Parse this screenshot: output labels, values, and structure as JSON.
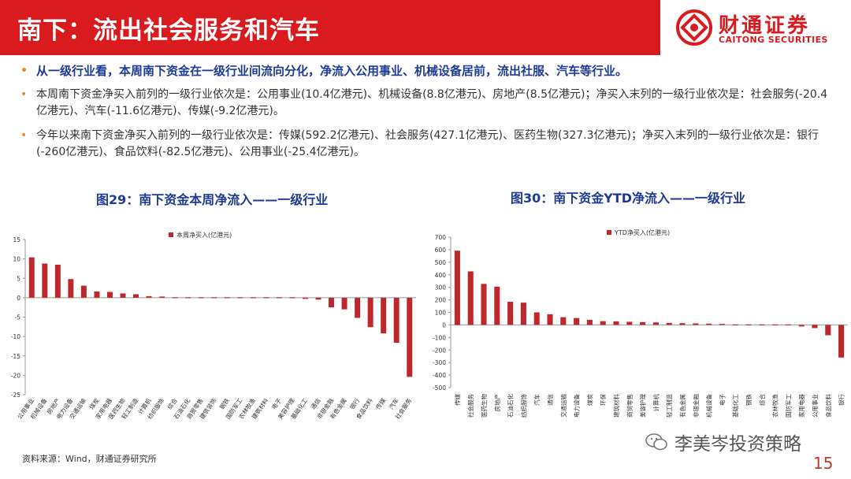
{
  "header": {
    "title": "南下：流出社会服务和汽车",
    "brand_cn": "财通证券",
    "brand_en": "CAITONG SECURITIES",
    "accent_color": "#d91a1f"
  },
  "bullets": [
    "从一级行业看，本周南下资金在一级行业间流向分化，净流入公用事业、机械设备居前，流出社服、汽车等行业。",
    "本周南下资金净买入前列的一级行业依次是：公用事业(10.4亿港元)、机械设备(8.8亿港元)、房地产(8.5亿港元)；净买入末列的一级行业依次是：社会服务(-20.4亿港元)、汽车(-11.6亿港元)、传媒(-9.2亿港元)。",
    "今年以来南下资金净买入前列的一级行业依次是：传媒(592.2亿港元)、社会服务(427.1亿港元)、医药生物(327.3亿港元)；净买入末列的一级行业依次是：银行(-260亿港元)、食品饮料(-82.5亿港元)、公用事业(-25.4亿港元)。"
  ],
  "footer": {
    "source": "资料来源：Wind，财通证券研究所",
    "watermark": "李美岑投资策略",
    "page": "15"
  },
  "chart_data": [
    {
      "type": "bar",
      "title": "图29：南下资金本周净流入——一级行业",
      "categories": [
        "公用事业",
        "机械设备",
        "房地产",
        "电力设备",
        "交通运输",
        "煤炭",
        "家用电器",
        "医药生物",
        "轻工制造",
        "计算机",
        "纺织服饰",
        "综合",
        "石油石化",
        "商贸零售",
        "建筑装饰",
        "钢铁",
        "国防军工",
        "农林牧渔",
        "建筑材料",
        "电子",
        "美容护理",
        "基础化工",
        "通信",
        "非银金融",
        "有色金属",
        "银行",
        "食品饮料",
        "传媒",
        "汽车",
        "社会服务"
      ],
      "series": [
        {
          "name": "本周净买入(亿港元)",
          "values": [
            10.4,
            8.8,
            8.5,
            4.8,
            3.1,
            1.6,
            1.5,
            1.1,
            0.9,
            0.4,
            0.3,
            0.2,
            0.2,
            0.2,
            0.1,
            0.0,
            0.0,
            0.0,
            0.0,
            0.0,
            -0.2,
            -0.3,
            -0.5,
            -2.5,
            -3.0,
            -5.2,
            -7.6,
            -9.2,
            -11.6,
            -20.4
          ]
        }
      ],
      "ylim": [
        -25,
        15
      ],
      "yticks": [
        -25,
        -20,
        -15,
        -10,
        -5,
        0,
        5,
        10,
        15
      ],
      "legend": "top-center",
      "grid": false,
      "bar_color": "#c0272d"
    },
    {
      "type": "bar",
      "title": "图30：南下资金YTD净流入——一级行业",
      "categories": [
        "传媒",
        "社会服务",
        "医药生物",
        "房地产",
        "石油石化",
        "纺织服饰",
        "汽车",
        "通信",
        "交通运输",
        "电力设备",
        "煤炭",
        "环保",
        "建筑材料",
        "商贸零售",
        "美容护理",
        "计算机",
        "轻工制造",
        "有色金属",
        "非银金融",
        "机械设备",
        "电子",
        "基础化工",
        "钢铁",
        "综合",
        "农林牧渔",
        "国防军工",
        "家用电器",
        "公用事业",
        "食品饮料",
        "银行"
      ],
      "series": [
        {
          "name": "YTD净买入(亿港元)",
          "values": [
            592.2,
            427.1,
            327.3,
            305,
            185,
            178,
            100,
            85,
            62,
            55,
            40,
            30,
            28,
            25,
            22,
            20,
            16,
            14,
            12,
            10,
            8,
            6,
            2,
            1,
            0,
            -4,
            -12,
            -25.4,
            -82.5,
            -260
          ]
        }
      ],
      "ylim": [
        -500,
        700
      ],
      "yticks": [
        -500,
        -400,
        -300,
        -200,
        -100,
        0,
        100,
        200,
        300,
        400,
        500,
        600,
        700
      ],
      "legend": "top-center",
      "grid": false,
      "bar_color": "#c0272d"
    }
  ]
}
